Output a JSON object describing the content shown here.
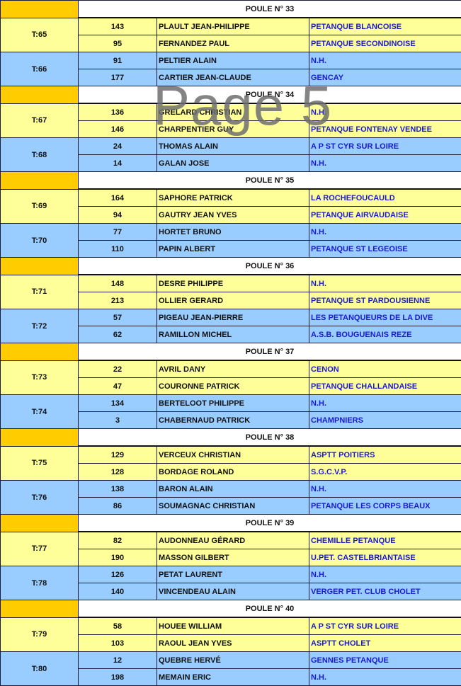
{
  "watermark": "Page 5",
  "colors": {
    "yellow": "#ffff99",
    "blue": "#99ccff",
    "orange": "#ffcc00",
    "club_text": "#1a1ad0"
  },
  "poules": [
    {
      "title": "POULE N° 33",
      "tables": [
        {
          "label": "T:65",
          "players": [
            {
              "num": "143",
              "name": "PLAULT JEAN-PHILIPPE",
              "club": "PETANQUE BLANCOISE"
            },
            {
              "num": "95",
              "name": "FERNANDEZ PAUL",
              "club": "PETANQUE SECONDINOISE"
            }
          ]
        },
        {
          "label": "T:66",
          "players": [
            {
              "num": "91",
              "name": "PELTIER ALAIN",
              "club": "N.H."
            },
            {
              "num": "177",
              "name": "CARTIER JEAN-CLAUDE",
              "club": "GENCAY"
            }
          ]
        }
      ]
    },
    {
      "title": "POULE N° 34",
      "tables": [
        {
          "label": "T:67",
          "players": [
            {
              "num": "136",
              "name": "GRELARD CHRISTIAN",
              "club": "N.H."
            },
            {
              "num": "146",
              "name": "CHARPENTIER GUY",
              "club": "PETANQUE FONTENAY VENDEE"
            }
          ]
        },
        {
          "label": "T:68",
          "players": [
            {
              "num": "24",
              "name": "THOMAS ALAIN",
              "club": "A P ST CYR SUR LOIRE"
            },
            {
              "num": "14",
              "name": "GALAN JOSE",
              "club": "N.H."
            }
          ]
        }
      ]
    },
    {
      "title": "POULE N° 35",
      "tables": [
        {
          "label": "T:69",
          "players": [
            {
              "num": "164",
              "name": "SAPHORE PATRICK",
              "club": "LA ROCHEFOUCAULD"
            },
            {
              "num": "94",
              "name": "GAUTRY JEAN YVES",
              "club": "PETANQUE AIRVAUDAISE"
            }
          ]
        },
        {
          "label": "T:70",
          "players": [
            {
              "num": "77",
              "name": "HORTET BRUNO",
              "club": "N.H."
            },
            {
              "num": "110",
              "name": "PAPIN ALBERT",
              "club": "PETANQUE ST LEGEOISE"
            }
          ]
        }
      ]
    },
    {
      "title": "POULE N° 36",
      "tables": [
        {
          "label": "T:71",
          "players": [
            {
              "num": "148",
              "name": "DESRE PHILIPPE",
              "club": "N.H."
            },
            {
              "num": "213",
              "name": "OLLIER GERARD",
              "club": "PETANQUE ST PARDOUSIENNE"
            }
          ]
        },
        {
          "label": "T:72",
          "players": [
            {
              "num": "57",
              "name": "PIGEAU JEAN-PIERRE",
              "club": "LES PETANQUEURS DE LA DIVE"
            },
            {
              "num": "62",
              "name": "RAMILLON MICHEL",
              "club": "A.S.B. BOUGUENAIS REZE"
            }
          ]
        }
      ]
    },
    {
      "title": "POULE N° 37",
      "tables": [
        {
          "label": "T:73",
          "players": [
            {
              "num": "22",
              "name": "AVRIL DANY",
              "club": "CENON"
            },
            {
              "num": "47",
              "name": "COURONNE PATRICK",
              "club": "PETANQUE CHALLANDAISE"
            }
          ]
        },
        {
          "label": "T:74",
          "players": [
            {
              "num": "134",
              "name": "BERTELOOT PHILIPPE",
              "club": "N.H."
            },
            {
              "num": "3",
              "name": "CHABERNAUD PATRICK",
              "club": "CHAMPNIERS"
            }
          ]
        }
      ]
    },
    {
      "title": "POULE N° 38",
      "tables": [
        {
          "label": "T:75",
          "players": [
            {
              "num": "129",
              "name": "VERCEUX CHRISTIAN",
              "club": "ASPTT POITIERS"
            },
            {
              "num": "128",
              "name": "BORDAGE ROLAND",
              "club": "S.G.C.V.P."
            }
          ]
        },
        {
          "label": "T:76",
          "players": [
            {
              "num": "138",
              "name": "BARON ALAIN",
              "club": "N.H."
            },
            {
              "num": "86",
              "name": "SOUMAGNAC CHRISTIAN",
              "club": "PETANQUE LES CORPS BEAUX"
            }
          ]
        }
      ]
    },
    {
      "title": "POULE N° 39",
      "tables": [
        {
          "label": "T:77",
          "players": [
            {
              "num": "82",
              "name": "AUDONNEAU GÉRARD",
              "club": "CHEMILLE PETANQUE"
            },
            {
              "num": "190",
              "name": "MASSON GILBERT",
              "club": "U.PET. CASTELBRIANTAISE"
            }
          ]
        },
        {
          "label": "T:78",
          "players": [
            {
              "num": "126",
              "name": "PETAT LAURENT",
              "club": "N.H."
            },
            {
              "num": "140",
              "name": "VINCENDEAU ALAIN",
              "club": "VERGER PET. CLUB CHOLET"
            }
          ]
        }
      ]
    },
    {
      "title": "POULE N° 40",
      "tables": [
        {
          "label": "T:79",
          "players": [
            {
              "num": "58",
              "name": "HOUEE WILLIAM",
              "club": "A P ST CYR SUR LOIRE"
            },
            {
              "num": "103",
              "name": "RAOUL JEAN YVES",
              "club": "ASPTT CHOLET"
            }
          ]
        },
        {
          "label": "T:80",
          "players": [
            {
              "num": "12",
              "name": "QUEBRE HERVÉ",
              "club": "GENNES PETANQUE"
            },
            {
              "num": "198",
              "name": "MEMAIN ERIC",
              "club": "N.H."
            }
          ]
        }
      ]
    }
  ]
}
